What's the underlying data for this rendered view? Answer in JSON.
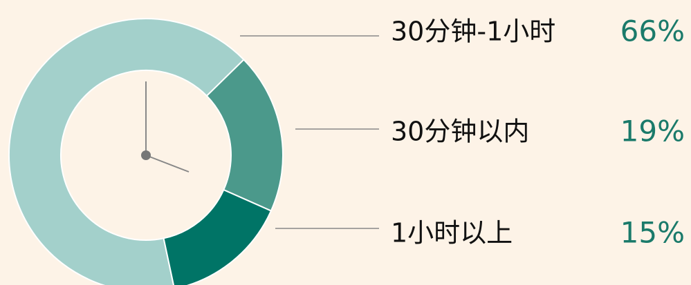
{
  "chart_data": {
    "type": "pie",
    "categories": [
      "30分钟-1小时",
      "30分钟以内",
      "1小时以上"
    ],
    "values": [
      66,
      19,
      15
    ],
    "value_labels": [
      "66%",
      "19%",
      "15%"
    ],
    "colors": [
      "#a3d0cb",
      "#4b998b",
      "#007466"
    ]
  }
}
